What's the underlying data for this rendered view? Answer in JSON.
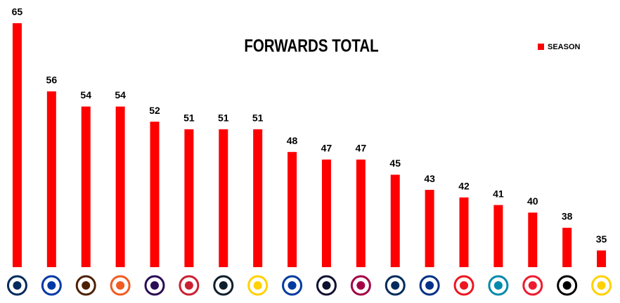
{
  "chart_data": {
    "type": "bar",
    "title": "FORWARDS TOTAL",
    "categories": [
      null,
      null,
      null,
      null,
      null,
      null,
      null,
      null,
      null,
      null,
      null,
      null,
      null,
      null,
      null,
      null,
      null,
      null
    ],
    "series": [
      {
        "name": "SEASON",
        "color": "#ff0000",
        "values": [
          65,
          56,
          54,
          54,
          52,
          51,
          51,
          51,
          48,
          47,
          47,
          45,
          43,
          42,
          41,
          40,
          38,
          35
        ]
      }
    ],
    "ylim": [
      32.8,
      65
    ],
    "legend": "top-right"
  }
}
